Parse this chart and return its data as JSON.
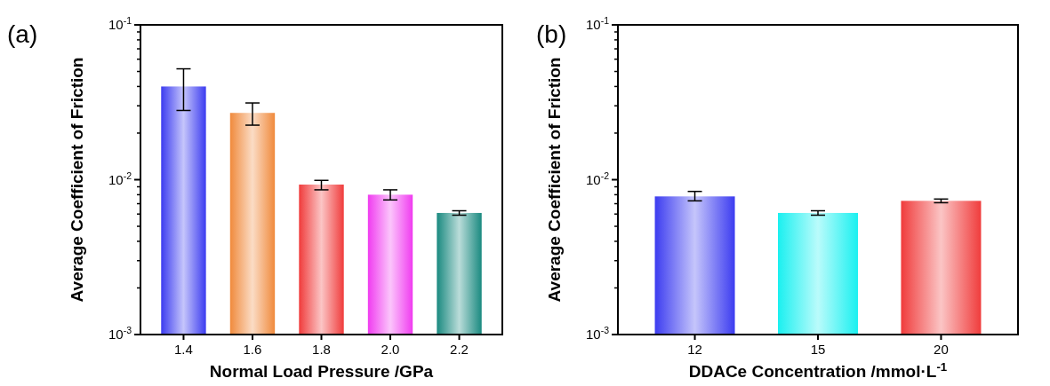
{
  "chart_data": [
    {
      "type": "bar",
      "annotations": [
        "(a)"
      ],
      "xlabel": "Normal Load Pressure /GPa",
      "ylabel": "Average Coefficient of Friction",
      "categories": [
        "1.4",
        "1.6",
        "1.8",
        "2.0",
        "2.2"
      ],
      "values": [
        0.04,
        0.027,
        0.0093,
        0.008,
        0.0061
      ],
      "colors": [
        "#3c3cf0",
        "#f08a3c",
        "#f03c3c",
        "#f03cf0",
        "#1a8a80"
      ],
      "errors": [
        [
          0.028,
          0.052
        ],
        [
          0.0225,
          0.0313
        ],
        [
          0.0086,
          0.0099
        ],
        [
          0.0074,
          0.0086
        ],
        [
          0.0059,
          0.0063
        ]
      ],
      "log": true,
      "ylim": [
        0.001,
        0.1
      ],
      "yticks": [
        {
          "value": 0.001,
          "label": "10$^{-3}$"
        },
        {
          "value": 0.01,
          "label": "10$^{-2}$"
        },
        {
          "value": 0.1,
          "label": "10$^{-1}$"
        }
      ]
    },
    {
      "type": "bar",
      "annotations": [
        "(b)"
      ],
      "xlabel": "DDACe Concentration /mmol·L$^{-1}$",
      "ylabel": "Average Coefficient of Friction",
      "categories": [
        "12",
        "15",
        "20"
      ],
      "values": [
        0.0078,
        0.0061,
        0.0073
      ],
      "colors": [
        "#3c3cf0",
        "#1af0f0",
        "#f03c3c"
      ],
      "errors": [
        [
          0.0073,
          0.0084
        ],
        [
          0.0059,
          0.0063
        ],
        [
          0.0071,
          0.0075
        ]
      ],
      "log": true,
      "ylim": [
        0.001,
        0.1
      ],
      "yticks": [
        {
          "value": 0.001,
          "label": "10$^{-3}$"
        },
        {
          "value": 0.01,
          "label": "10$^{-2}$"
        },
        {
          "value": 0.1,
          "label": "10$^{-1}$"
        }
      ]
    }
  ]
}
